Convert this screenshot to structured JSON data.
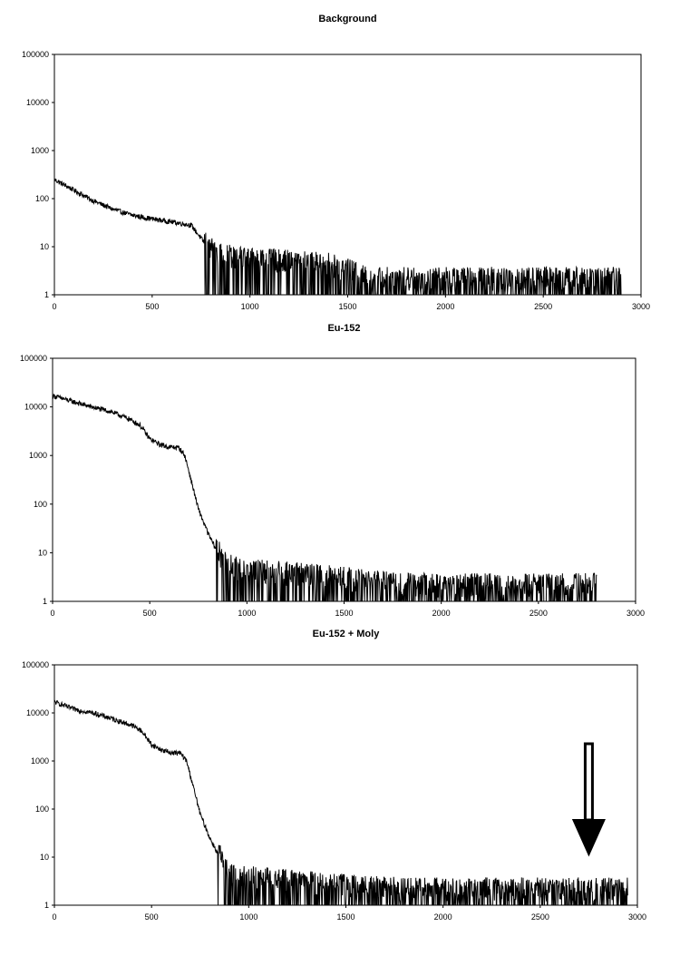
{
  "chart_data": [
    {
      "type": "line",
      "title": "Background",
      "yscale": "log",
      "xlim": [
        0,
        3000
      ],
      "ylim": [
        1,
        100000
      ],
      "x_ticks": [
        "0",
        "500",
        "1000",
        "1500",
        "2000",
        "2500",
        "3000"
      ],
      "y_ticks": [
        "1",
        "10",
        "100",
        "1000",
        "10000",
        "100000"
      ],
      "grid": false,
      "series": [
        {
          "x": [
            0,
            100,
            200,
            300,
            400,
            500,
            600,
            700,
            750,
            800,
            900,
            1000,
            1200,
            1400,
            1500,
            1600,
            1800,
            2000,
            2200,
            2500,
            2800,
            2900
          ],
          "values": [
            250,
            150,
            90,
            60,
            45,
            38,
            33,
            28,
            15,
            8,
            6,
            5,
            4.5,
            4,
            3,
            2,
            2,
            2,
            2,
            2,
            2,
            2
          ]
        }
      ]
    },
    {
      "type": "line",
      "title": "Eu-152",
      "yscale": "log",
      "xlim": [
        0,
        3000
      ],
      "ylim": [
        1,
        100000
      ],
      "x_ticks": [
        "0",
        "500",
        "1000",
        "1500",
        "2000",
        "2500",
        "3000"
      ],
      "y_ticks": [
        "1",
        "10",
        "100",
        "1000",
        "10000",
        "100000"
      ],
      "grid": false,
      "series": [
        {
          "x": [
            0,
            100,
            200,
            300,
            400,
            450,
            500,
            550,
            600,
            650,
            680,
            700,
            750,
            800,
            850,
            900,
            1000,
            1200,
            1400,
            1600,
            1800,
            2000,
            2200,
            2500,
            2800
          ],
          "values": [
            17000,
            13000,
            10000,
            8000,
            5500,
            4200,
            2200,
            1700,
            1500,
            1450,
            1000,
            500,
            80,
            25,
            10,
            5,
            4,
            3.5,
            3,
            2.5,
            2,
            2,
            2,
            2,
            2
          ]
        }
      ]
    },
    {
      "type": "line",
      "title": "Eu-152 + Moly",
      "yscale": "log",
      "xlim": [
        0,
        3000
      ],
      "ylim": [
        1,
        100000
      ],
      "x_ticks": [
        "0",
        "500",
        "1000",
        "1500",
        "2000",
        "2500",
        "3000"
      ],
      "y_ticks": [
        "1",
        "10",
        "100",
        "1000",
        "10000",
        "100000"
      ],
      "grid": false,
      "annotation_arrow_x": 2750,
      "series": [
        {
          "x": [
            0,
            100,
            200,
            300,
            400,
            450,
            500,
            550,
            600,
            650,
            680,
            700,
            750,
            800,
            850,
            900,
            1000,
            1200,
            1400,
            1600,
            1800,
            2000,
            2200,
            2500,
            2800,
            2950
          ],
          "values": [
            17000,
            12000,
            10000,
            7500,
            5500,
            4200,
            2200,
            1700,
            1500,
            1450,
            1000,
            500,
            80,
            25,
            10,
            4,
            3.5,
            3,
            2.5,
            2.2,
            2,
            2,
            2,
            2,
            2,
            2
          ]
        }
      ]
    }
  ]
}
